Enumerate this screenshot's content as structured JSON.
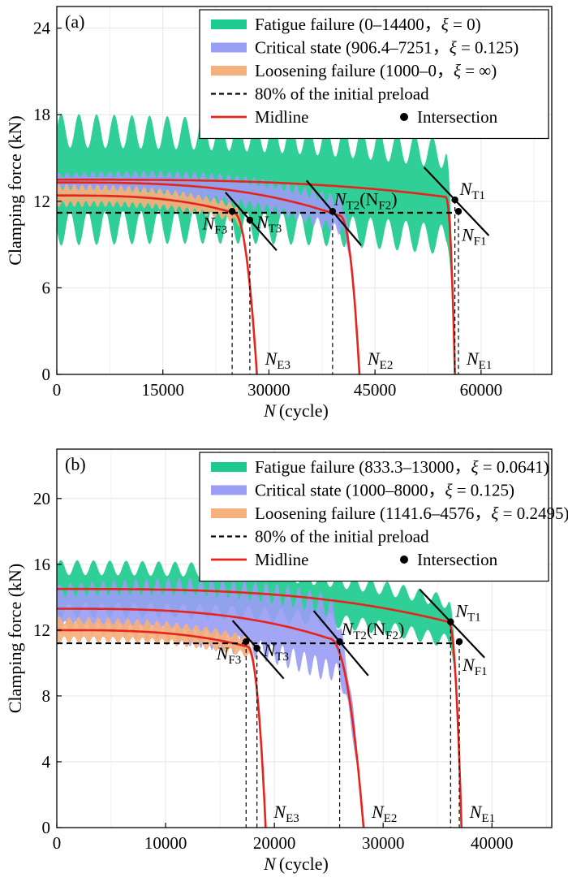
{
  "chart_data": [
    {
      "type": "area",
      "panel_label": "(a)",
      "xlabel": "N",
      "xlabel_unit": "(cycle)",
      "ylabel": "Clamping force (kN)",
      "xlim": [
        0,
        70000
      ],
      "ylim": [
        0,
        25.5
      ],
      "xticks": [
        0,
        15000,
        30000,
        45000,
        60000
      ],
      "yticks": [
        0,
        6,
        12,
        18,
        24
      ],
      "threshold_80pct": 11.2,
      "grid": true,
      "legend_position": "top-right",
      "legend": [
        {
          "key": "fatigue",
          "label_prefix": "Fatigue failure (0–14400，",
          "xi_value": " = 0)",
          "color": "#1ecb8f"
        },
        {
          "key": "critical",
          "label_prefix": "Critical state (906.4–7251，",
          "xi_value": " = 0.125)",
          "color": "#9a9ef4"
        },
        {
          "key": "loosening",
          "label_prefix": "Loosening failure (1000–0，",
          "xi_value": " = ∞)",
          "color": "#f5b07c"
        },
        {
          "key": "threshold",
          "label": "80% of the initial preload",
          "color": "#000000"
        },
        {
          "key": "midline",
          "label": "Midline",
          "color": "#e8231a"
        },
        {
          "key": "intersection",
          "label": "Intersection",
          "color": "#000000"
        }
      ],
      "series": [
        {
          "name": "Fatigue failure",
          "color": "#1ecb8f",
          "start_mid": 13.5,
          "end_mid": 12.3,
          "amp": 3.4,
          "amp_end": 3.0,
          "n_plateau_end": 55000,
          "n_failure": 56300,
          "knee": 2000,
          "ripple_period": 2500
        },
        {
          "name": "Critical state",
          "color": "#9a9ef4",
          "start_mid": 13.3,
          "end_mid": 11.0,
          "amp": 0.5,
          "amp_end": 1.0,
          "n_plateau_end": 40000,
          "n_failure": 42800,
          "knee": 8000,
          "ripple_period": 1200
        },
        {
          "name": "Loosening failure",
          "color": "#f5b07c",
          "start_mid": 12.4,
          "end_mid": 11.2,
          "amp": 0.6,
          "amp_end": 0.5,
          "n_plateau_end": 25000,
          "n_failure": 28300,
          "knee": 6000,
          "ripple_period": 1100
        }
      ],
      "intersections": [
        {
          "n": 24800,
          "y": 11.3,
          "label": "N",
          "sub": "F3",
          "side": "left"
        },
        {
          "n": 27300,
          "y": 10.7,
          "label": "N",
          "sub": "T3",
          "side": "right"
        },
        {
          "n": 39000,
          "y": 11.3,
          "label": "N",
          "sub": "T2",
          "extra_label": "(N",
          "extra_sub": "F2",
          "extra_close": ")",
          "side": "above"
        },
        {
          "n": 56300,
          "y": 12.1,
          "label": "N",
          "sub": "T1",
          "side": "above-right"
        },
        {
          "n": 56800,
          "y": 11.3,
          "label": "N",
          "sub": "F1",
          "side": "below-right"
        }
      ],
      "end_labels": [
        {
          "n": 28300,
          "label": "N",
          "sub": "E3"
        },
        {
          "n": 42800,
          "label": "N",
          "sub": "E2"
        },
        {
          "n": 56800,
          "label": "N",
          "sub": "E1"
        }
      ]
    },
    {
      "type": "area",
      "panel_label": "(b)",
      "xlabel": "N",
      "xlabel_unit": "(cycle)",
      "ylabel": "Clamping force (kN)",
      "xlim": [
        0,
        45500
      ],
      "ylim": [
        0,
        23
      ],
      "xticks": [
        0,
        10000,
        20000,
        30000,
        40000
      ],
      "yticks": [
        0,
        4,
        8,
        12,
        16,
        20
      ],
      "threshold_80pct": 11.2,
      "grid": true,
      "legend_position": "top-right",
      "legend": [
        {
          "key": "fatigue",
          "label_prefix": "Fatigue failure (833.3–13000，",
          "xi_value": " = 0.0641)",
          "color": "#1ecb8f"
        },
        {
          "key": "critical",
          "label_prefix": "Critical state (1000–8000，",
          "xi_value": " = 0.125)",
          "color": "#9a9ef4"
        },
        {
          "key": "loosening",
          "label_prefix": "Loosening failure (1141.6–4576，",
          "xi_value": " = 0.2495)",
          "color": "#f5b07c"
        },
        {
          "key": "threshold",
          "label": "80% of the initial preload",
          "color": "#000000"
        },
        {
          "key": "midline",
          "label": "Midline",
          "color": "#e8231a"
        },
        {
          "key": "intersection",
          "label": "Intersection",
          "color": "#000000"
        }
      ],
      "series": [
        {
          "name": "Fatigue failure",
          "color": "#1ecb8f",
          "start_mid": 14.5,
          "end_mid": 12.5,
          "amp": 1.3,
          "amp_end": 1.2,
          "n_plateau_end": 36000,
          "n_failure": 37200,
          "knee": 3000,
          "ripple_period": 1500
        },
        {
          "name": "Critical state",
          "color": "#9a9ef4",
          "start_mid": 13.3,
          "end_mid": 11.5,
          "amp": 1.1,
          "amp_end": 2.0,
          "n_plateau_end": 25000,
          "n_failure": 28200,
          "knee": 6000,
          "ripple_period": 1000
        },
        {
          "name": "Loosening failure",
          "color": "#f5b07c",
          "start_mid": 12.0,
          "end_mid": 11.0,
          "amp": 0.6,
          "amp_end": 0.5,
          "n_plateau_end": 17500,
          "n_failure": 19200,
          "knee": 4000,
          "ripple_period": 900
        }
      ],
      "intersections": [
        {
          "n": 17400,
          "y": 11.3,
          "label": "N",
          "sub": "F3",
          "side": "left"
        },
        {
          "n": 18400,
          "y": 10.9,
          "label": "N",
          "sub": "T3",
          "side": "right"
        },
        {
          "n": 26000,
          "y": 11.3,
          "label": "N",
          "sub": "T2",
          "extra_label": "(N",
          "extra_sub": "F2",
          "extra_close": ")",
          "side": "above"
        },
        {
          "n": 36200,
          "y": 12.5,
          "label": "N",
          "sub": "T1",
          "side": "above-right"
        },
        {
          "n": 37000,
          "y": 11.3,
          "label": "N",
          "sub": "F1",
          "side": "below-right"
        }
      ],
      "end_labels": [
        {
          "n": 19200,
          "label": "N",
          "sub": "E3"
        },
        {
          "n": 28200,
          "label": "N",
          "sub": "E2"
        },
        {
          "n": 37200,
          "label": "N",
          "sub": "E1"
        }
      ]
    }
  ],
  "symbols": {
    "xi": "ξ"
  }
}
